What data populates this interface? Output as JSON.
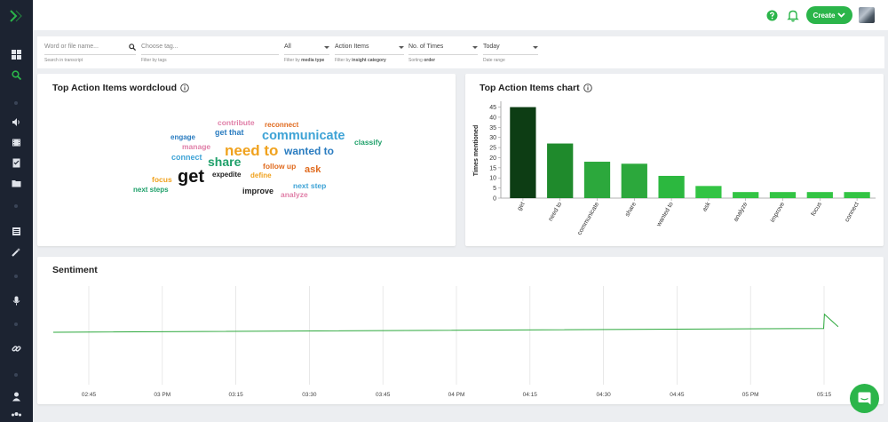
{
  "topbar": {
    "create_label": "Create"
  },
  "filters": {
    "search": {
      "placeholder": "Word or file name...",
      "sub": "Search in transcript"
    },
    "tags": {
      "placeholder": "Choose tag...",
      "sub": "Filter by tags"
    },
    "media": {
      "value": "All",
      "sub_prefix": "Filter by",
      "sub_bold": "media type"
    },
    "insight": {
      "value": "Action Items",
      "sub_prefix": "Filter by",
      "sub_bold": "insight category"
    },
    "sorting": {
      "value": "No. of Times",
      "sub_prefix": "Sorting",
      "sub_bold": "order"
    },
    "date": {
      "value": "Today",
      "sub": "Date range"
    }
  },
  "wordcloud": {
    "title": "Top Action Items wordcloud",
    "words": [
      {
        "text": "contribute",
        "color": "#e07fa8"
      },
      {
        "text": "reconnect",
        "color": "#e06b1f"
      },
      {
        "text": "engage",
        "color": "#2a7cc0"
      },
      {
        "text": "get that",
        "color": "#2a7cc0"
      },
      {
        "text": "communicate",
        "color": "#3ea3d6"
      },
      {
        "text": "classify",
        "color": "#1fa06a"
      },
      {
        "text": "manage",
        "color": "#e07fa8"
      },
      {
        "text": "need to",
        "color": "#f0a21e"
      },
      {
        "text": "wanted to",
        "color": "#2a7cc0"
      },
      {
        "text": "connect",
        "color": "#3ea3d6"
      },
      {
        "text": "share",
        "color": "#1fa06a"
      },
      {
        "text": "follow up",
        "color": "#e06b1f"
      },
      {
        "text": "ask",
        "color": "#e06b1f"
      },
      {
        "text": "expedite",
        "color": "#222222"
      },
      {
        "text": "define",
        "color": "#f0a21e"
      },
      {
        "text": "get",
        "color": "#111111"
      },
      {
        "text": "focus",
        "color": "#f0a21e"
      },
      {
        "text": "next step",
        "color": "#3ea3d6"
      },
      {
        "text": "next steps",
        "color": "#1fa06a"
      },
      {
        "text": "improve",
        "color": "#222222"
      },
      {
        "text": "analyze",
        "color": "#e07fa8"
      }
    ]
  },
  "barchart": {
    "title": "Top Action Items chart"
  },
  "chart_data": [
    {
      "type": "bar",
      "ylabel": "Times mentioned",
      "xlabel": "",
      "categories": [
        "get",
        "need to",
        "communicate",
        "share",
        "wanted to",
        "ask",
        "analyze",
        "improve",
        "focus",
        "connect"
      ],
      "values": [
        45,
        27,
        18,
        17,
        11,
        6,
        3,
        3,
        3,
        3
      ],
      "colors": [
        "#0d3d14",
        "#1f8a2c",
        "#2ca83c",
        "#2ca83c",
        "#2cb83f",
        "#33c444",
        "#33c444",
        "#33c444",
        "#33c444",
        "#33c444"
      ],
      "yticks": [
        0,
        5,
        10,
        15,
        20,
        25,
        30,
        35,
        40,
        45
      ],
      "ylim": [
        0,
        47
      ]
    },
    {
      "type": "line",
      "title": "Sentiment",
      "x_tick_labels": [
        "02:45",
        "03 PM",
        "03:15",
        "03:30",
        "03:45",
        "04 PM",
        "04:15",
        "04:30",
        "04:45",
        "05 PM",
        "05:15"
      ],
      "series": [
        {
          "color": "#2ca83c",
          "points": [
            [
              0.0,
              0.0
            ],
            [
              0.947,
              0.055
            ],
            [
              0.948,
              0.26
            ],
            [
              0.965,
              0.08
            ]
          ]
        }
      ],
      "grid": "vertical"
    }
  ],
  "sentiment": {
    "title": "Sentiment"
  }
}
